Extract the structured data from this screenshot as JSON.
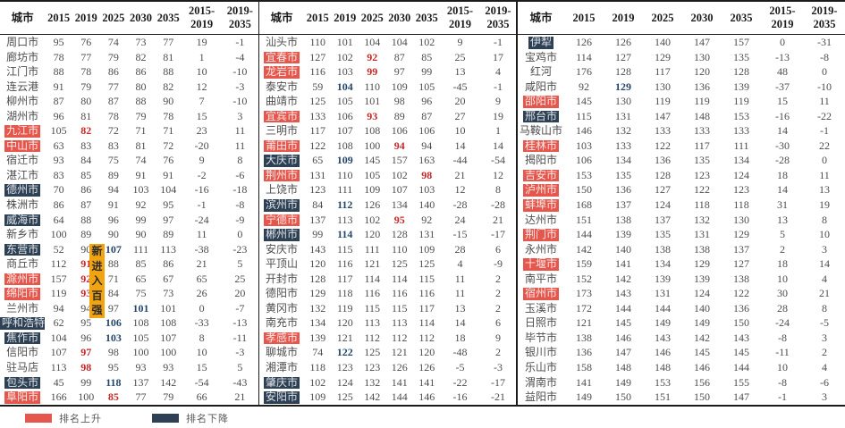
{
  "colors": {
    "up": "#E5574D",
    "down": "#2E4053",
    "red": "#C62828",
    "blue": "#24466B",
    "yellow": "#F2A410"
  },
  "columns": [
    "城市",
    "2015",
    "2019",
    "2025",
    "2030",
    "2035",
    "2015-\n2019",
    "2019-\n2035"
  ],
  "overlay": {
    "new_entry_label": "新进入百强"
  },
  "legend": {
    "up": "排名上升",
    "down": "排名下降"
  },
  "panels": [
    {
      "rows": [
        {
          "city": "周口市",
          "v": [
            95,
            76,
            74,
            73,
            77,
            19,
            -1
          ]
        },
        {
          "city": "廊坊市",
          "v": [
            78,
            77,
            79,
            82,
            81,
            1,
            -4
          ]
        },
        {
          "city": "江门市",
          "v": [
            88,
            78,
            86,
            86,
            88,
            10,
            -10
          ]
        },
        {
          "city": "连云港",
          "v": [
            91,
            79,
            77,
            80,
            82,
            12,
            -3
          ]
        },
        {
          "city": "柳州市",
          "v": [
            87,
            80,
            87,
            88,
            90,
            7,
            -10
          ]
        },
        {
          "city": "湖州市",
          "v": [
            96,
            81,
            78,
            79,
            78,
            15,
            3
          ]
        },
        {
          "city": "九江市",
          "hl": "up",
          "v": [
            105,
            82,
            72,
            71,
            71,
            23,
            11
          ],
          "marks": {
            "1": "red"
          }
        },
        {
          "city": "中山市",
          "hl": "up",
          "v": [
            63,
            83,
            83,
            81,
            72,
            -20,
            11
          ]
        },
        {
          "city": "宿迁市",
          "v": [
            93,
            84,
            75,
            74,
            76,
            9,
            8
          ]
        },
        {
          "city": "湛江市",
          "v": [
            83,
            85,
            89,
            91,
            91,
            -2,
            -6
          ]
        },
        {
          "city": "德州市",
          "hl": "down",
          "v": [
            70,
            86,
            94,
            103,
            104,
            -16,
            -18
          ]
        },
        {
          "city": "株洲市",
          "v": [
            86,
            87,
            91,
            92,
            95,
            -1,
            -8
          ]
        },
        {
          "city": "威海市",
          "hl": "down",
          "v": [
            64,
            88,
            96,
            99,
            97,
            -24,
            -9
          ]
        },
        {
          "city": "新乡市",
          "v": [
            100,
            89,
            90,
            90,
            89,
            11,
            0
          ]
        },
        {
          "city": "东营市",
          "hl": "down",
          "v": [
            52,
            90,
            107,
            111,
            113,
            -38,
            -23
          ],
          "marks": {
            "2": "blue"
          }
        },
        {
          "city": "商丘市",
          "v": [
            112,
            91,
            88,
            85,
            86,
            21,
            5
          ],
          "marks": {
            "1": "red"
          }
        },
        {
          "city": "滁州市",
          "hl": "up",
          "v": [
            157,
            92,
            71,
            65,
            67,
            65,
            25
          ],
          "marks": {
            "1": "red"
          }
        },
        {
          "city": "绵阳市",
          "hl": "up",
          "v": [
            119,
            93,
            84,
            75,
            73,
            26,
            20
          ],
          "marks": {
            "1": "red"
          }
        },
        {
          "city": "兰州市",
          "v": [
            94,
            94,
            97,
            101,
            101,
            0,
            -7
          ],
          "marks": {
            "3": "blue"
          }
        },
        {
          "city": "呼和浩特",
          "hl": "down",
          "v": [
            62,
            95,
            106,
            108,
            108,
            -33,
            -13
          ],
          "marks": {
            "2": "blue"
          }
        },
        {
          "city": "焦作市",
          "hl": "down",
          "v": [
            104,
            96,
            103,
            105,
            107,
            8,
            -11
          ],
          "marks": {
            "2": "blue"
          }
        },
        {
          "city": "信阳市",
          "v": [
            107,
            97,
            98,
            100,
            100,
            10,
            -3
          ],
          "marks": {
            "1": "red"
          }
        },
        {
          "city": "驻马店",
          "v": [
            113,
            98,
            95,
            93,
            93,
            15,
            5
          ],
          "marks": {
            "1": "red"
          }
        },
        {
          "city": "包头市",
          "hl": "down",
          "v": [
            45,
            99,
            118,
            137,
            142,
            -54,
            -43
          ],
          "marks": {
            "2": "blue"
          }
        },
        {
          "city": "阜阳市",
          "hl": "up",
          "v": [
            166,
            100,
            85,
            77,
            79,
            66,
            21
          ],
          "marks": {
            "2": "red"
          }
        }
      ]
    },
    {
      "rows": [
        {
          "city": "汕头市",
          "v": [
            110,
            101,
            104,
            104,
            102,
            9,
            -1
          ]
        },
        {
          "city": "宜春市",
          "hl": "up",
          "v": [
            127,
            102,
            92,
            87,
            85,
            25,
            17
          ],
          "marks": {
            "2": "red"
          }
        },
        {
          "city": "龙岩市",
          "hl": "up",
          "v": [
            116,
            103,
            99,
            97,
            99,
            13,
            4
          ],
          "marks": {
            "2": "red"
          }
        },
        {
          "city": "泰安市",
          "v": [
            59,
            104,
            110,
            109,
            105,
            -45,
            -1
          ],
          "marks": {
            "1": "blue"
          }
        },
        {
          "city": "曲靖市",
          "v": [
            125,
            105,
            101,
            98,
            96,
            20,
            9
          ]
        },
        {
          "city": "宜宾市",
          "hl": "up",
          "v": [
            133,
            106,
            93,
            89,
            87,
            27,
            19
          ],
          "marks": {
            "2": "red"
          }
        },
        {
          "city": "三明市",
          "v": [
            117,
            107,
            108,
            106,
            106,
            10,
            1
          ]
        },
        {
          "city": "莆田市",
          "hl": "up",
          "v": [
            122,
            108,
            100,
            94,
            94,
            14,
            14
          ],
          "marks": {
            "3": "red"
          }
        },
        {
          "city": "大庆市",
          "hl": "down",
          "v": [
            65,
            109,
            145,
            157,
            163,
            -44,
            -54
          ],
          "marks": {
            "1": "blue"
          }
        },
        {
          "city": "荆州市",
          "hl": "up",
          "v": [
            131,
            110,
            105,
            102,
            98,
            21,
            12
          ],
          "marks": {
            "4": "red"
          }
        },
        {
          "city": "上饶市",
          "v": [
            123,
            111,
            109,
            107,
            103,
            12,
            8
          ]
        },
        {
          "city": "滨州市",
          "hl": "down",
          "v": [
            84,
            112,
            126,
            134,
            140,
            -28,
            -28
          ],
          "marks": {
            "1": "blue"
          }
        },
        {
          "city": "宁德市",
          "hl": "up",
          "v": [
            137,
            113,
            102,
            95,
            92,
            24,
            21
          ],
          "marks": {
            "3": "red"
          }
        },
        {
          "city": "郴州市",
          "hl": "down",
          "v": [
            99,
            114,
            120,
            128,
            131,
            -15,
            -17
          ],
          "marks": {
            "1": "blue"
          }
        },
        {
          "city": "安庆市",
          "v": [
            143,
            115,
            111,
            110,
            109,
            28,
            6
          ]
        },
        {
          "city": "平顶山",
          "v": [
            120,
            116,
            121,
            125,
            125,
            4,
            -9
          ]
        },
        {
          "city": "开封市",
          "v": [
            128,
            117,
            114,
            114,
            115,
            11,
            2
          ]
        },
        {
          "city": "德阳市",
          "v": [
            129,
            118,
            116,
            116,
            116,
            11,
            2
          ]
        },
        {
          "city": "黄冈市",
          "v": [
            132,
            119,
            115,
            115,
            117,
            13,
            2
          ]
        },
        {
          "city": "南充市",
          "v": [
            134,
            120,
            113,
            113,
            114,
            14,
            6
          ]
        },
        {
          "city": "孝感市",
          "hl": "up",
          "v": [
            139,
            121,
            112,
            112,
            112,
            18,
            9
          ]
        },
        {
          "city": "聊城市",
          "v": [
            74,
            122,
            125,
            121,
            120,
            -48,
            2
          ],
          "marks": {
            "1": "blue"
          }
        },
        {
          "city": "湘潭市",
          "v": [
            118,
            123,
            123,
            126,
            126,
            -5,
            -3
          ]
        },
        {
          "city": "肇庆市",
          "hl": "down",
          "v": [
            102,
            124,
            132,
            141,
            141,
            -22,
            -17
          ]
        },
        {
          "city": "安阳市",
          "hl": "down",
          "v": [
            109,
            125,
            142,
            144,
            146,
            -16,
            -21
          ]
        }
      ]
    },
    {
      "rows": [
        {
          "city": "伊犁",
          "hl": "down",
          "v": [
            126,
            126,
            140,
            147,
            157,
            0,
            -31
          ]
        },
        {
          "city": "宝鸡市",
          "v": [
            114,
            127,
            129,
            130,
            135,
            -13,
            -8
          ]
        },
        {
          "city": "红河",
          "v": [
            176,
            128,
            117,
            120,
            128,
            48,
            0
          ]
        },
        {
          "city": "咸阳市",
          "v": [
            92,
            129,
            130,
            136,
            139,
            -37,
            -10
          ],
          "marks": {
            "1": "blue"
          }
        },
        {
          "city": "邵阳市",
          "hl": "up",
          "v": [
            145,
            130,
            119,
            119,
            119,
            15,
            11
          ]
        },
        {
          "city": "邢台市",
          "hl": "down",
          "v": [
            115,
            131,
            147,
            148,
            153,
            -16,
            -22
          ]
        },
        {
          "city": "马鞍山市",
          "v": [
            146,
            132,
            133,
            133,
            133,
            14,
            -1
          ]
        },
        {
          "city": "桂林市",
          "hl": "up",
          "v": [
            103,
            133,
            122,
            117,
            111,
            -30,
            22
          ]
        },
        {
          "city": "揭阳市",
          "v": [
            106,
            134,
            136,
            135,
            134,
            -28,
            0
          ]
        },
        {
          "city": "吉安市",
          "hl": "up",
          "v": [
            153,
            135,
            128,
            123,
            124,
            18,
            11
          ]
        },
        {
          "city": "泸州市",
          "hl": "up",
          "v": [
            150,
            136,
            127,
            122,
            123,
            14,
            13
          ]
        },
        {
          "city": "蚌埠市",
          "hl": "up",
          "v": [
            168,
            137,
            124,
            118,
            118,
            31,
            19
          ]
        },
        {
          "city": "达州市",
          "v": [
            151,
            138,
            137,
            132,
            130,
            13,
            8
          ]
        },
        {
          "city": "荆门市",
          "hl": "up",
          "v": [
            144,
            139,
            135,
            131,
            129,
            5,
            10
          ]
        },
        {
          "city": "永州市",
          "v": [
            142,
            140,
            138,
            138,
            137,
            2,
            3
          ]
        },
        {
          "city": "十堰市",
          "hl": "up",
          "v": [
            159,
            141,
            134,
            129,
            127,
            18,
            14
          ]
        },
        {
          "city": "南平市",
          "v": [
            152,
            142,
            139,
            139,
            138,
            10,
            4
          ]
        },
        {
          "city": "宿州市",
          "hl": "up",
          "v": [
            173,
            143,
            131,
            124,
            122,
            30,
            21
          ]
        },
        {
          "city": "玉溪市",
          "v": [
            172,
            144,
            144,
            140,
            136,
            28,
            8
          ]
        },
        {
          "city": "日照市",
          "v": [
            121,
            145,
            149,
            149,
            150,
            -24,
            -5
          ]
        },
        {
          "city": "毕节市",
          "v": [
            138,
            146,
            143,
            142,
            143,
            -8,
            3
          ]
        },
        {
          "city": "银川市",
          "v": [
            136,
            147,
            146,
            145,
            145,
            -11,
            2
          ]
        },
        {
          "city": "乐山市",
          "v": [
            158,
            148,
            148,
            146,
            144,
            10,
            4
          ]
        },
        {
          "city": "渭南市",
          "v": [
            141,
            149,
            153,
            156,
            155,
            -8,
            -6
          ]
        },
        {
          "city": "益阳市",
          "v": [
            149,
            150,
            151,
            150,
            147,
            -1,
            3
          ]
        }
      ]
    }
  ]
}
